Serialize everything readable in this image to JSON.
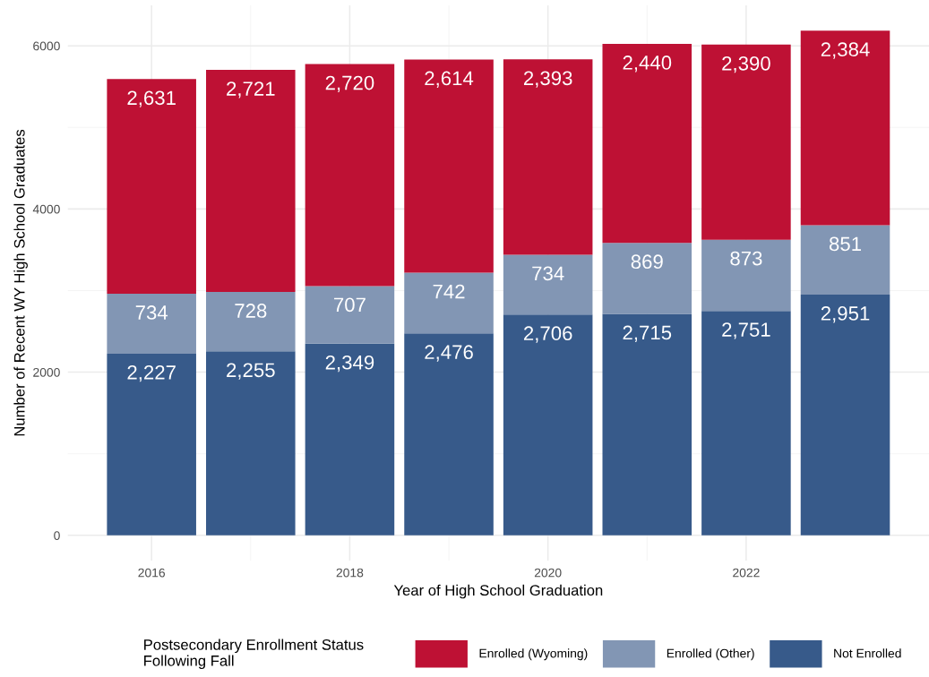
{
  "chart_data": {
    "type": "bar",
    "stacked": true,
    "xlabel": "Year of High School Graduation",
    "ylabel": "Number of Recent WY High School Graduates",
    "legend_title": "Postsecondary Enrollment Status\nFollowing Fall",
    "x": [
      2016,
      2017,
      2018,
      2019,
      2020,
      2021,
      2022,
      2023
    ],
    "xlim": [
      2015.155,
      2023.845
    ],
    "xticks": [
      2016,
      2018,
      2020,
      2022
    ],
    "ylim": [
      -309,
      6495
    ],
    "yticks": [
      0,
      2000,
      4000,
      6000
    ],
    "grid": true,
    "legend": "bottom",
    "series": [
      {
        "name": "Not Enrolled",
        "color": "#375a8a",
        "values": [
          2227,
          2255,
          2349,
          2476,
          2706,
          2715,
          2751,
          2951
        ],
        "value_labels": [
          "2,227",
          "2,255",
          "2,349",
          "2,476",
          "2,706",
          "2,715",
          "2,751",
          "2,951"
        ]
      },
      {
        "name": "Enrolled (Other)",
        "color": "#8296b4",
        "values": [
          734,
          728,
          707,
          742,
          734,
          869,
          873,
          851
        ],
        "value_labels": [
          "734",
          "728",
          "707",
          "742",
          "734",
          "869",
          "873",
          "851"
        ]
      },
      {
        "name": "Enrolled (Wyoming)",
        "color": "#be1134",
        "values": [
          2631,
          2721,
          2720,
          2614,
          2393,
          2440,
          2390,
          2384
        ],
        "value_labels": [
          "2,631",
          "2,721",
          "2,720",
          "2,614",
          "2,393",
          "2,440",
          "2,390",
          "2,384"
        ]
      }
    ]
  }
}
